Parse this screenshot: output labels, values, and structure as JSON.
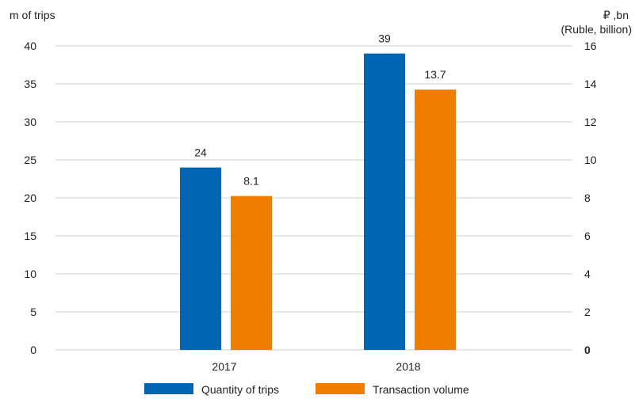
{
  "chart_data": {
    "type": "bar",
    "categories": [
      "2017",
      "2018"
    ],
    "series": [
      {
        "name": "Quantity of trips",
        "axis": "left",
        "values": [
          24,
          39
        ],
        "color": "#0066b3"
      },
      {
        "name": "Transaction volume",
        "axis": "right",
        "values": [
          8.1,
          13.7
        ],
        "color": "#ef7d00"
      }
    ],
    "data_labels": [
      [
        "24",
        "39"
      ],
      [
        "8.1",
        "13.7"
      ]
    ],
    "y_left": {
      "label": "m of trips",
      "min": 0,
      "max": 40,
      "ticks": [
        0,
        5,
        10,
        15,
        20,
        25,
        30,
        35,
        40
      ]
    },
    "y_right": {
      "label_line1": "₽ ,bn",
      "label_line2": "(Ruble, billion)",
      "min": 0,
      "max": 16,
      "ticks": [
        0,
        2,
        4,
        6,
        8,
        10,
        12,
        14,
        16
      ]
    },
    "grid": true,
    "legend_position": "bottom"
  }
}
